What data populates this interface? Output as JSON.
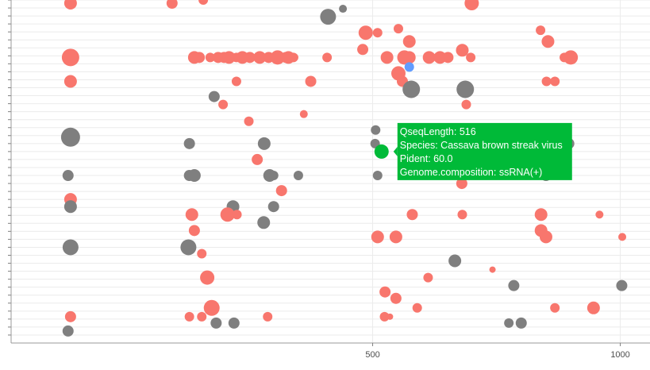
{
  "chart_data": {
    "type": "scatter",
    "title": "",
    "xlabel": "",
    "ylabel": "",
    "xlim": [
      -230,
      1060
    ],
    "ylim": [
      0,
      43
    ],
    "x_ticks": [
      500,
      1000
    ],
    "x_tick_labels": [
      "500",
      "1000"
    ],
    "grid": true,
    "legend": "none",
    "colors": {
      "ssRNA(+)": "#f8766d",
      "other": "#7f7f7f",
      "blue": "#619cff",
      "highlight": "#00ba38",
      "grid": "#ebebeb",
      "axis": "#999999"
    },
    "points": [
      {
        "x": -110,
        "y": 42.6,
        "s": 8,
        "g": "ssRNA(+)"
      },
      {
        "x": 95,
        "y": 42.6,
        "s": 7,
        "g": "ssRNA(+)"
      },
      {
        "x": 158,
        "y": 43.0,
        "s": 6,
        "g": "ssRNA(+)"
      },
      {
        "x": 410,
        "y": 40.9,
        "s": 10,
        "g": "other"
      },
      {
        "x": 440,
        "y": 41.9,
        "s": 5,
        "g": "other"
      },
      {
        "x": 700,
        "y": 42.6,
        "s": 9,
        "g": "ssRNA(+)"
      },
      {
        "x": 552,
        "y": 39.4,
        "s": 6,
        "g": "ssRNA(+)"
      },
      {
        "x": 486,
        "y": 38.9,
        "s": 9,
        "g": "ssRNA(+)"
      },
      {
        "x": 510,
        "y": 38.9,
        "s": 6,
        "g": "ssRNA(+)"
      },
      {
        "x": 574,
        "y": 37.8,
        "s": 8,
        "g": "ssRNA(+)"
      },
      {
        "x": 480,
        "y": 36.8,
        "s": 7,
        "g": "ssRNA(+)"
      },
      {
        "x": -110,
        "y": 35.8,
        "s": 11,
        "g": "ssRNA(+)"
      },
      {
        "x": 140,
        "y": 35.8,
        "s": 8,
        "g": "ssRNA(+)"
      },
      {
        "x": 150,
        "y": 35.8,
        "s": 7,
        "g": "ssRNA(+)"
      },
      {
        "x": 172,
        "y": 35.8,
        "s": 6,
        "g": "ssRNA(+)"
      },
      {
        "x": 188,
        "y": 35.8,
        "s": 7,
        "g": "ssRNA(+)"
      },
      {
        "x": 200,
        "y": 35.8,
        "s": 7,
        "g": "ssRNA(+)"
      },
      {
        "x": 210,
        "y": 35.8,
        "s": 8,
        "g": "ssRNA(+)"
      },
      {
        "x": 225,
        "y": 35.8,
        "s": 6,
        "g": "ssRNA(+)"
      },
      {
        "x": 237,
        "y": 35.8,
        "s": 8,
        "g": "ssRNA(+)"
      },
      {
        "x": 252,
        "y": 35.8,
        "s": 7,
        "g": "ssRNA(+)"
      },
      {
        "x": 272,
        "y": 35.8,
        "s": 8,
        "g": "ssRNA(+)"
      },
      {
        "x": 290,
        "y": 35.8,
        "s": 7,
        "g": "ssRNA(+)"
      },
      {
        "x": 308,
        "y": 35.8,
        "s": 9,
        "g": "ssRNA(+)"
      },
      {
        "x": 325,
        "y": 35.8,
        "s": 7,
        "g": "ssRNA(+)"
      },
      {
        "x": 340,
        "y": 35.8,
        "s": 6,
        "g": "ssRNA(+)"
      },
      {
        "x": 342,
        "y": 35.8,
        "s": 5,
        "g": "ssRNA(+)"
      },
      {
        "x": 330,
        "y": 35.8,
        "s": 8,
        "g": "ssRNA(+)"
      },
      {
        "x": 292,
        "y": 35.8,
        "s": 6,
        "g": "ssRNA(+)"
      },
      {
        "x": 408,
        "y": 35.8,
        "s": 6,
        "g": "ssRNA(+)"
      },
      {
        "x": 529,
        "y": 35.8,
        "s": 8,
        "g": "ssRNA(+)"
      },
      {
        "x": 564,
        "y": 35.8,
        "s": 9,
        "g": "ssRNA(+)"
      },
      {
        "x": 574,
        "y": 35.8,
        "s": 8,
        "g": "ssRNA(+)"
      },
      {
        "x": 614,
        "y": 35.8,
        "s": 8,
        "g": "ssRNA(+)"
      },
      {
        "x": 636,
        "y": 35.8,
        "s": 8,
        "g": "ssRNA(+)"
      },
      {
        "x": 652,
        "y": 35.8,
        "s": 7,
        "g": "ssRNA(+)"
      },
      {
        "x": 681,
        "y": 36.7,
        "s": 8,
        "g": "ssRNA(+)"
      },
      {
        "x": 698,
        "y": 35.8,
        "s": 6,
        "g": "ssRNA(+)"
      },
      {
        "x": 839,
        "y": 39.2,
        "s": 6,
        "g": "ssRNA(+)"
      },
      {
        "x": 887,
        "y": 35.8,
        "s": 6,
        "g": "ssRNA(+)"
      },
      {
        "x": 854,
        "y": 37.8,
        "s": 8,
        "g": "ssRNA(+)"
      },
      {
        "x": 900,
        "y": 35.8,
        "s": 9,
        "g": "ssRNA(+)"
      },
      {
        "x": 574,
        "y": 34.6,
        "s": 6,
        "g": "blue"
      },
      {
        "x": 552,
        "y": 33.8,
        "s": 9,
        "g": "ssRNA(+)"
      },
      {
        "x": -110,
        "y": 32.8,
        "s": 8,
        "g": "ssRNA(+)"
      },
      {
        "x": 225,
        "y": 32.8,
        "s": 6,
        "g": "ssRNA(+)"
      },
      {
        "x": 375,
        "y": 32.8,
        "s": 7,
        "g": "ssRNA(+)"
      },
      {
        "x": 560,
        "y": 32.8,
        "s": 7,
        "g": "ssRNA(+)"
      },
      {
        "x": 851,
        "y": 32.8,
        "s": 6,
        "g": "ssRNA(+)"
      },
      {
        "x": 868,
        "y": 32.8,
        "s": 6,
        "g": "ssRNA(+)"
      },
      {
        "x": 578,
        "y": 31.8,
        "s": 11,
        "g": "other"
      },
      {
        "x": 687,
        "y": 31.8,
        "s": 11,
        "g": "other"
      },
      {
        "x": 180,
        "y": 30.9,
        "s": 7,
        "g": "other"
      },
      {
        "x": 198,
        "y": 29.9,
        "s": 6,
        "g": "ssRNA(+)"
      },
      {
        "x": 689,
        "y": 29.9,
        "s": 6,
        "g": "ssRNA(+)"
      },
      {
        "x": 361,
        "y": 28.7,
        "s": 5,
        "g": "ssRNA(+)"
      },
      {
        "x": 250,
        "y": 27.8,
        "s": 6,
        "g": "ssRNA(+)"
      },
      {
        "x": 506,
        "y": 26.7,
        "s": 6,
        "g": "other"
      },
      {
        "x": -110,
        "y": 25.8,
        "s": 12,
        "g": "other"
      },
      {
        "x": 130,
        "y": 25.0,
        "s": 7,
        "g": "other"
      },
      {
        "x": 281,
        "y": 25.0,
        "s": 8,
        "g": "other"
      },
      {
        "x": 505,
        "y": 25.0,
        "s": 6,
        "g": "other"
      },
      {
        "x": 836,
        "y": 25.8,
        "s": 9,
        "g": "other"
      },
      {
        "x": 896,
        "y": 25.0,
        "s": 7,
        "g": "other"
      },
      {
        "x": 518,
        "y": 24.0,
        "s": 9,
        "g": "highlight"
      },
      {
        "x": 267,
        "y": 23.0,
        "s": 7,
        "g": "ssRNA(+)"
      },
      {
        "x": -115,
        "y": 21.0,
        "s": 7,
        "g": "other"
      },
      {
        "x": 130,
        "y": 21.0,
        "s": 7,
        "g": "other"
      },
      {
        "x": 140,
        "y": 21.0,
        "s": 8,
        "g": "other"
      },
      {
        "x": 292,
        "y": 21.0,
        "s": 8,
        "g": "other"
      },
      {
        "x": 300,
        "y": 21.0,
        "s": 6,
        "g": "other"
      },
      {
        "x": 350,
        "y": 21.0,
        "s": 6,
        "g": "other"
      },
      {
        "x": 510,
        "y": 21.0,
        "s": 6,
        "g": "other"
      },
      {
        "x": 850,
        "y": 21.0,
        "s": 7,
        "g": "other"
      },
      {
        "x": 680,
        "y": 20.0,
        "s": 7,
        "g": "ssRNA(+)"
      },
      {
        "x": 316,
        "y": 19.1,
        "s": 7,
        "g": "ssRNA(+)"
      },
      {
        "x": -110,
        "y": 18.0,
        "s": 8,
        "g": "ssRNA(+)"
      },
      {
        "x": -110,
        "y": 17.1,
        "s": 8,
        "g": "other"
      },
      {
        "x": 218,
        "y": 17.1,
        "s": 8,
        "g": "other"
      },
      {
        "x": 300,
        "y": 17.1,
        "s": 7,
        "g": "other"
      },
      {
        "x": 135,
        "y": 16.1,
        "s": 8,
        "g": "ssRNA(+)"
      },
      {
        "x": 207,
        "y": 16.1,
        "s": 9,
        "g": "ssRNA(+)"
      },
      {
        "x": 226,
        "y": 16.1,
        "s": 6,
        "g": "ssRNA(+)"
      },
      {
        "x": 580,
        "y": 16.1,
        "s": 7,
        "g": "ssRNA(+)"
      },
      {
        "x": 681,
        "y": 16.1,
        "s": 6,
        "g": "ssRNA(+)"
      },
      {
        "x": 840,
        "y": 16.1,
        "s": 8,
        "g": "ssRNA(+)"
      },
      {
        "x": 958,
        "y": 16.1,
        "s": 5,
        "g": "ssRNA(+)"
      },
      {
        "x": 280,
        "y": 15.1,
        "s": 8,
        "g": "other"
      },
      {
        "x": 140,
        "y": 14.1,
        "s": 7,
        "g": "ssRNA(+)"
      },
      {
        "x": 840,
        "y": 14.1,
        "s": 8,
        "g": "ssRNA(+)"
      },
      {
        "x": 850,
        "y": 13.3,
        "s": 8,
        "g": "ssRNA(+)"
      },
      {
        "x": 510,
        "y": 13.3,
        "s": 8,
        "g": "ssRNA(+)"
      },
      {
        "x": 547,
        "y": 13.3,
        "s": 8,
        "g": "ssRNA(+)"
      },
      {
        "x": 1004,
        "y": 13.3,
        "s": 5,
        "g": "ssRNA(+)"
      },
      {
        "x": -110,
        "y": 12.0,
        "s": 10,
        "g": "other"
      },
      {
        "x": 128,
        "y": 12.0,
        "s": 10,
        "g": "other"
      },
      {
        "x": 155,
        "y": 11.2,
        "s": 6,
        "g": "ssRNA(+)"
      },
      {
        "x": 666,
        "y": 10.3,
        "s": 8,
        "g": "other"
      },
      {
        "x": 742,
        "y": 9.2,
        "s": 4,
        "g": "ssRNA(+)"
      },
      {
        "x": 166,
        "y": 8.2,
        "s": 9,
        "g": "ssRNA(+)"
      },
      {
        "x": 612,
        "y": 8.2,
        "s": 6,
        "g": "ssRNA(+)"
      },
      {
        "x": 785,
        "y": 7.2,
        "s": 7,
        "g": "other"
      },
      {
        "x": 1003,
        "y": 7.2,
        "s": 7,
        "g": "other"
      },
      {
        "x": 525,
        "y": 6.4,
        "s": 7,
        "g": "ssRNA(+)"
      },
      {
        "x": 547,
        "y": 5.6,
        "s": 7,
        "g": "ssRNA(+)"
      },
      {
        "x": 590,
        "y": 4.4,
        "s": 6,
        "g": "ssRNA(+)"
      },
      {
        "x": 868,
        "y": 4.4,
        "s": 6,
        "g": "ssRNA(+)"
      },
      {
        "x": 946,
        "y": 4.4,
        "s": 8,
        "g": "ssRNA(+)"
      },
      {
        "x": 175,
        "y": 4.4,
        "s": 10,
        "g": "ssRNA(+)"
      },
      {
        "x": -110,
        "y": 3.3,
        "s": 7,
        "g": "ssRNA(+)"
      },
      {
        "x": 130,
        "y": 3.3,
        "s": 6,
        "g": "ssRNA(+)"
      },
      {
        "x": 155,
        "y": 3.3,
        "s": 6,
        "g": "ssRNA(+)"
      },
      {
        "x": 288,
        "y": 3.3,
        "s": 6,
        "g": "ssRNA(+)"
      },
      {
        "x": 524,
        "y": 3.3,
        "s": 6,
        "g": "ssRNA(+)"
      },
      {
        "x": 535,
        "y": 3.3,
        "s": 4,
        "g": "ssRNA(+)"
      },
      {
        "x": 184,
        "y": 2.5,
        "s": 7,
        "g": "other"
      },
      {
        "x": 220,
        "y": 2.5,
        "s": 7,
        "g": "other"
      },
      {
        "x": 775,
        "y": 2.5,
        "s": 6,
        "g": "other"
      },
      {
        "x": 800,
        "y": 2.5,
        "s": 7,
        "g": "other"
      },
      {
        "x": -115,
        "y": 1.5,
        "s": 7,
        "g": "other"
      }
    ],
    "tooltip": {
      "lines": [
        "QseqLength:  516",
        "Species: Cassava brown streak virus",
        "Pident: 60.0",
        "Genome.composition: ssRNA(+)"
      ]
    }
  }
}
